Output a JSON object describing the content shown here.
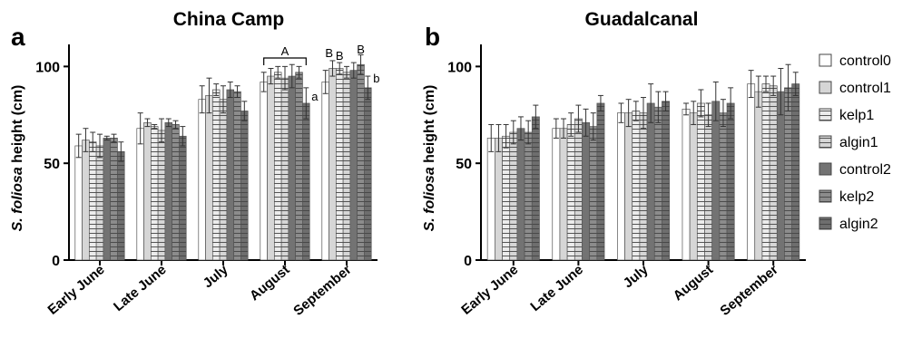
{
  "chart_data": [
    {
      "type": "bar",
      "panel_label": "a",
      "title": "China  Camp",
      "ylabel_italic": "S. foliosa",
      "ylabel_rest": " height (cm)",
      "xlabel": "",
      "ylim": [
        0,
        110
      ],
      "yticks": [
        0,
        50,
        100
      ],
      "categories": [
        "Early June",
        "Late June",
        "July",
        "August",
        "September"
      ],
      "series": [
        {
          "name": "control0",
          "values": [
            59,
            68,
            83,
            92,
            92
          ],
          "errors": [
            6,
            8,
            7,
            5,
            6
          ]
        },
        {
          "name": "control1",
          "values": [
            62,
            71,
            85,
            95,
            99
          ],
          "errors": [
            6,
            2,
            9,
            4,
            4
          ]
        },
        {
          "name": "kelp1",
          "values": [
            61,
            69,
            88,
            97,
            99
          ],
          "errors": [
            5,
            1,
            3,
            3,
            3
          ]
        },
        {
          "name": "algin1",
          "values": [
            59,
            67,
            83,
            94,
            97
          ],
          "errors": [
            6,
            6,
            7,
            6,
            3
          ]
        },
        {
          "name": "control2",
          "values": [
            63,
            71,
            88,
            95,
            98
          ],
          "errors": [
            1,
            2,
            4,
            6,
            4
          ]
        },
        {
          "name": "kelp2",
          "values": [
            63,
            70,
            87,
            97,
            101
          ],
          "errors": [
            2,
            2,
            3,
            3,
            5
          ]
        },
        {
          "name": "algin2",
          "values": [
            56,
            64,
            77,
            81,
            89
          ],
          "errors": [
            5,
            5,
            5,
            8,
            6
          ]
        }
      ],
      "annotations": {
        "bracket": "A",
        "sep_left": "B",
        "sep_mid": "B",
        "sep_right": "B",
        "aug_algin2": "a",
        "sep_algin2": "b"
      }
    },
    {
      "type": "bar",
      "panel_label": "b",
      "title": "Guadalcanal",
      "ylabel_italic": "S. foliosa",
      "ylabel_rest": " height (cm)",
      "xlabel": "",
      "ylim": [
        0,
        110
      ],
      "yticks": [
        0,
        50,
        100
      ],
      "categories": [
        "Early June",
        "Late June",
        "July",
        "August",
        "September"
      ],
      "series": [
        {
          "name": "control0",
          "values": [
            63,
            68,
            76,
            78,
            91
          ],
          "errors": [
            7,
            5,
            5,
            3,
            7
          ]
        },
        {
          "name": "control1",
          "values": [
            63,
            68,
            76,
            76,
            87
          ],
          "errors": [
            7,
            5,
            7,
            6,
            8
          ]
        },
        {
          "name": "kelp1",
          "values": [
            64,
            70,
            77,
            81,
            91
          ],
          "errors": [
            6,
            6,
            5,
            7,
            4
          ]
        },
        {
          "name": "algin1",
          "values": [
            66,
            73,
            76,
            75,
            90
          ],
          "errors": [
            6,
            7,
            8,
            6,
            5
          ]
        },
        {
          "name": "control2",
          "values": [
            68,
            71,
            81,
            82,
            87
          ],
          "errors": [
            6,
            7,
            10,
            10,
            12
          ]
        },
        {
          "name": "kelp2",
          "values": [
            66,
            69,
            79,
            76,
            89
          ],
          "errors": [
            6,
            7,
            8,
            7,
            12
          ]
        },
        {
          "name": "algin2",
          "values": [
            74,
            81,
            82,
            81,
            91
          ],
          "errors": [
            6,
            4,
            5,
            8,
            6
          ]
        }
      ],
      "annotations": {}
    }
  ],
  "legend": {
    "items": [
      "control0",
      "control1",
      "kelp1",
      "algin1",
      "control2",
      "kelp2",
      "algin2"
    ],
    "fills": [
      "#ffffff",
      "#d6d6d6",
      "#ececec",
      "#d6d6d6",
      "#737373",
      "#8c8c8c",
      "#6e6e6e"
    ],
    "hatched": [
      false,
      false,
      true,
      true,
      false,
      true,
      true
    ]
  }
}
